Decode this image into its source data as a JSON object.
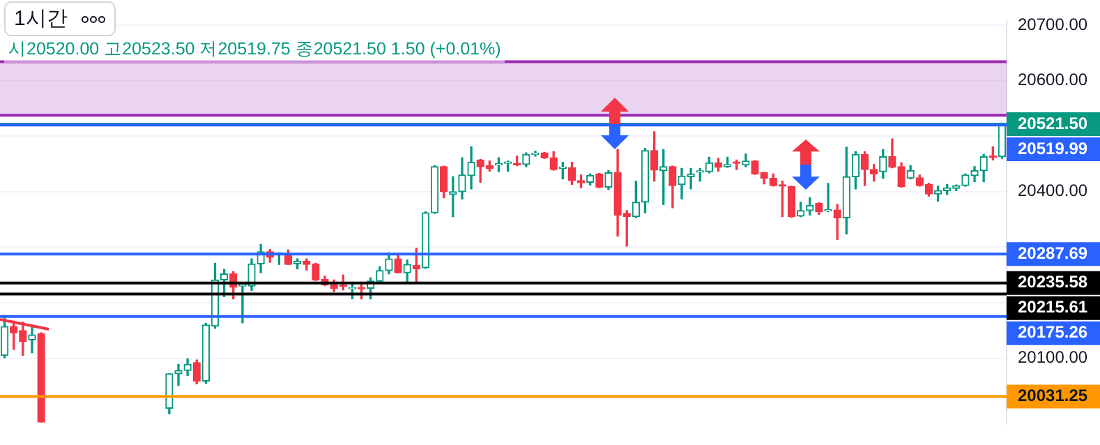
{
  "chart_data": {
    "type": "candlestick",
    "title": "1시간",
    "subtitle": "시20520.00 고20523.50 저20519.75 종20521.50 1.50 (+0.01%)",
    "categories": [
      null,
      null,
      null,
      null,
      null,
      null,
      null,
      null,
      null,
      null,
      null,
      null,
      null,
      null,
      null,
      null,
      null,
      null,
      null,
      null,
      null,
      null,
      null,
      null,
      null,
      null,
      null,
      null,
      null,
      null,
      null,
      null,
      null,
      null,
      null,
      null,
      null,
      null,
      null,
      null,
      null,
      null,
      null,
      null,
      null,
      null,
      null,
      null,
      null,
      null,
      null,
      null,
      null,
      null,
      null,
      null,
      null,
      null,
      null,
      null,
      null,
      null,
      null,
      null,
      null,
      null,
      null,
      null,
      null,
      null,
      null,
      null,
      null,
      null,
      null,
      null,
      null,
      null,
      null,
      null,
      null,
      null,
      null,
      null,
      null,
      null,
      null,
      null,
      null,
      null,
      null,
      null,
      null,
      null,
      null,
      null,
      null,
      null,
      null,
      null,
      null,
      null,
      null,
      null,
      null,
      null,
      null,
      null,
      null,
      null
    ],
    "ohlc": [
      [
        20105,
        20177,
        20101,
        20157
      ],
      [
        20157,
        20167,
        20116,
        20146
      ],
      [
        20150,
        20165,
        20105,
        20130
      ],
      [
        20133,
        20160,
        20110,
        20142
      ],
      [
        20144,
        20146,
        19985,
        19985
      ],
      null,
      null,
      null,
      null,
      null,
      null,
      null,
      null,
      null,
      null,
      null,
      null,
      null,
      [
        20010,
        20072,
        20000,
        20072
      ],
      [
        20072,
        20089,
        20051,
        20078
      ],
      [
        20078,
        20099,
        20069,
        20089
      ],
      [
        20092,
        20097,
        20054,
        20059
      ],
      [
        20059,
        20163,
        20055,
        20160
      ],
      [
        20158,
        20271,
        20154,
        20241
      ],
      [
        20241,
        20260,
        20211,
        20252
      ],
      [
        20252,
        20256,
        20207,
        20228
      ],
      [
        20230,
        20236,
        20164,
        20233
      ],
      [
        20230,
        20279,
        20222,
        20270
      ],
      [
        20270,
        20305,
        20254,
        20292
      ],
      [
        20292,
        20296,
        20273,
        20282
      ],
      [
        20287,
        20290,
        20269,
        20289
      ],
      [
        20288,
        20295,
        20269,
        20269
      ],
      [
        20270,
        20279,
        20261,
        20275
      ],
      [
        20275,
        20279,
        20259,
        20269
      ],
      [
        20270,
        20271,
        20240,
        20241
      ],
      [
        20242,
        20248,
        20231,
        20232
      ],
      [
        20232,
        20241,
        20220,
        20226
      ],
      [
        20231,
        20250,
        20223,
        20229
      ],
      [
        20225,
        20237,
        20207,
        20227
      ],
      [
        20227,
        20237,
        20207,
        20225
      ],
      [
        20226,
        20245,
        20207,
        20239
      ],
      [
        20239,
        20265,
        20238,
        20258
      ],
      [
        20258,
        20290,
        20252,
        20279
      ],
      [
        20279,
        20285,
        20254,
        20254
      ],
      [
        20254,
        20277,
        20237,
        20269
      ],
      [
        20267,
        20298,
        20237,
        20261
      ],
      [
        20263,
        20364,
        20262,
        20362
      ],
      [
        20362,
        20447,
        20361,
        20445
      ],
      [
        20445,
        20446,
        20389,
        20400
      ],
      [
        20395,
        20427,
        20355,
        20400
      ],
      [
        20400,
        20461,
        20387,
        20430
      ],
      [
        20429,
        20481,
        20405,
        20453
      ],
      [
        20457,
        20458,
        20417,
        20445
      ],
      [
        20447,
        20455,
        20437,
        20442
      ],
      [
        20448,
        20461,
        20436,
        20450
      ],
      [
        20451,
        20455,
        20437,
        20452
      ],
      [
        20449,
        20464,
        20447,
        20448
      ],
      [
        20449,
        20470,
        20445,
        20467
      ],
      [
        20467,
        20473,
        20464,
        20469
      ],
      [
        20470,
        20471,
        20460,
        20461
      ],
      [
        20461,
        20472,
        20439,
        20440
      ],
      [
        20442,
        20453,
        20423,
        20444
      ],
      [
        20443,
        20453,
        20413,
        20420
      ],
      [
        20420,
        20430,
        20407,
        20416
      ],
      [
        20417,
        20432,
        20412,
        20429
      ],
      [
        20432,
        20433,
        20407,
        20408
      ],
      [
        20408,
        20438,
        20404,
        20434
      ],
      [
        20434,
        20476,
        20320,
        20358
      ],
      [
        20361,
        20366,
        20302,
        20355
      ],
      [
        20355,
        20419,
        20353,
        20381
      ],
      [
        20381,
        20478,
        20362,
        20474
      ],
      [
        20474,
        20508,
        20419,
        20439
      ],
      [
        20438,
        20476,
        20377,
        20445
      ],
      [
        20445,
        20446,
        20371,
        20411
      ],
      [
        20413,
        20442,
        20387,
        20428
      ],
      [
        20427,
        20442,
        20405,
        20432
      ],
      [
        20435,
        20442,
        20419,
        20437
      ],
      [
        20436,
        20462,
        20434,
        20452
      ],
      [
        20452,
        20460,
        20437,
        20444
      ],
      [
        20445,
        20462,
        20444,
        20449
      ],
      [
        20452,
        20457,
        20440,
        20451
      ],
      [
        20448,
        20468,
        20445,
        20455
      ],
      [
        20455,
        20456,
        20431,
        20432
      ],
      [
        20434,
        20435,
        20414,
        20424
      ],
      [
        20424,
        20432,
        20410,
        20411
      ],
      [
        20412,
        20419,
        20355,
        20410
      ],
      [
        20409,
        20410,
        20354,
        20355
      ],
      [
        20356,
        20381,
        20355,
        20366
      ],
      [
        20366,
        20389,
        20358,
        20375
      ],
      [
        20379,
        20380,
        20359,
        20364
      ],
      [
        20365,
        20415,
        20364,
        20366
      ],
      [
        20367,
        20377,
        20314,
        20353
      ],
      [
        20353,
        20480,
        20324,
        20427
      ],
      [
        20427,
        20472,
        20405,
        20467
      ],
      [
        20467,
        20472,
        20411,
        20440
      ],
      [
        20440,
        20449,
        20419,
        20432
      ],
      [
        20436,
        20476,
        20424,
        20463
      ],
      [
        20463,
        20495,
        20443,
        20444
      ],
      [
        20445,
        20452,
        20408,
        20409
      ],
      [
        20424,
        20447,
        20423,
        20438
      ],
      [
        20425,
        20430,
        20410,
        20411
      ],
      [
        20413,
        20415,
        20392,
        20396
      ],
      [
        20396,
        20410,
        20383,
        20402
      ],
      [
        20402,
        20413,
        20395,
        20407
      ],
      [
        20406,
        20412,
        20402,
        20411
      ],
      [
        20411,
        20432,
        20410,
        20430
      ],
      [
        20429,
        20445,
        20418,
        20438
      ],
      [
        20438,
        20467,
        20418,
        20463
      ],
      [
        20464,
        20481,
        20457,
        20462
      ],
      [
        20463,
        20523.5,
        20460,
        20521.5
      ]
    ],
    "ylim": [
      19982,
      20707
    ],
    "yticks": [
      {
        "value": 20700,
        "label": "20700.00"
      },
      {
        "value": 20600,
        "label": "20600.00"
      },
      {
        "value": 20500,
        "label": null
      },
      {
        "value": 20400,
        "label": "20400.00"
      },
      {
        "value": 20300,
        "label": null
      },
      {
        "value": 20200,
        "label": null
      },
      {
        "value": 20100,
        "label": "20100.00"
      }
    ],
    "tick_labels": "y",
    "grid": "y",
    "legend": false,
    "ref_lines": [
      {
        "axis": "y",
        "value": 20634,
        "color": "#9c27b0"
      },
      {
        "axis": "y",
        "value": 20537.5,
        "color": "#9c27b0"
      },
      {
        "axis": "y",
        "value": 20521.5,
        "label": "20521.50",
        "color": "#089981"
      },
      {
        "axis": "y",
        "value": 20519.99,
        "label": "20519.99",
        "color": "#2962ff"
      },
      {
        "axis": "y",
        "value": 20287.69,
        "label": "20287.69",
        "color": "#2962ff"
      },
      {
        "axis": "y",
        "value": 20235.58,
        "label": "20235.58",
        "color": "#000000"
      },
      {
        "axis": "y",
        "value": 20215.61,
        "label": "20215.61",
        "color": "#000000"
      },
      {
        "axis": "y",
        "value": 20175.26,
        "label": "20175.26",
        "color": "#2962ff"
      },
      {
        "axis": "y",
        "value": 20031.25,
        "label": "20031.25",
        "color": "#ff9800"
      }
    ],
    "bands": [
      {
        "axis": "y",
        "from": 20537.5,
        "to": 20634,
        "color": "#9c27b0"
      }
    ]
  }
}
